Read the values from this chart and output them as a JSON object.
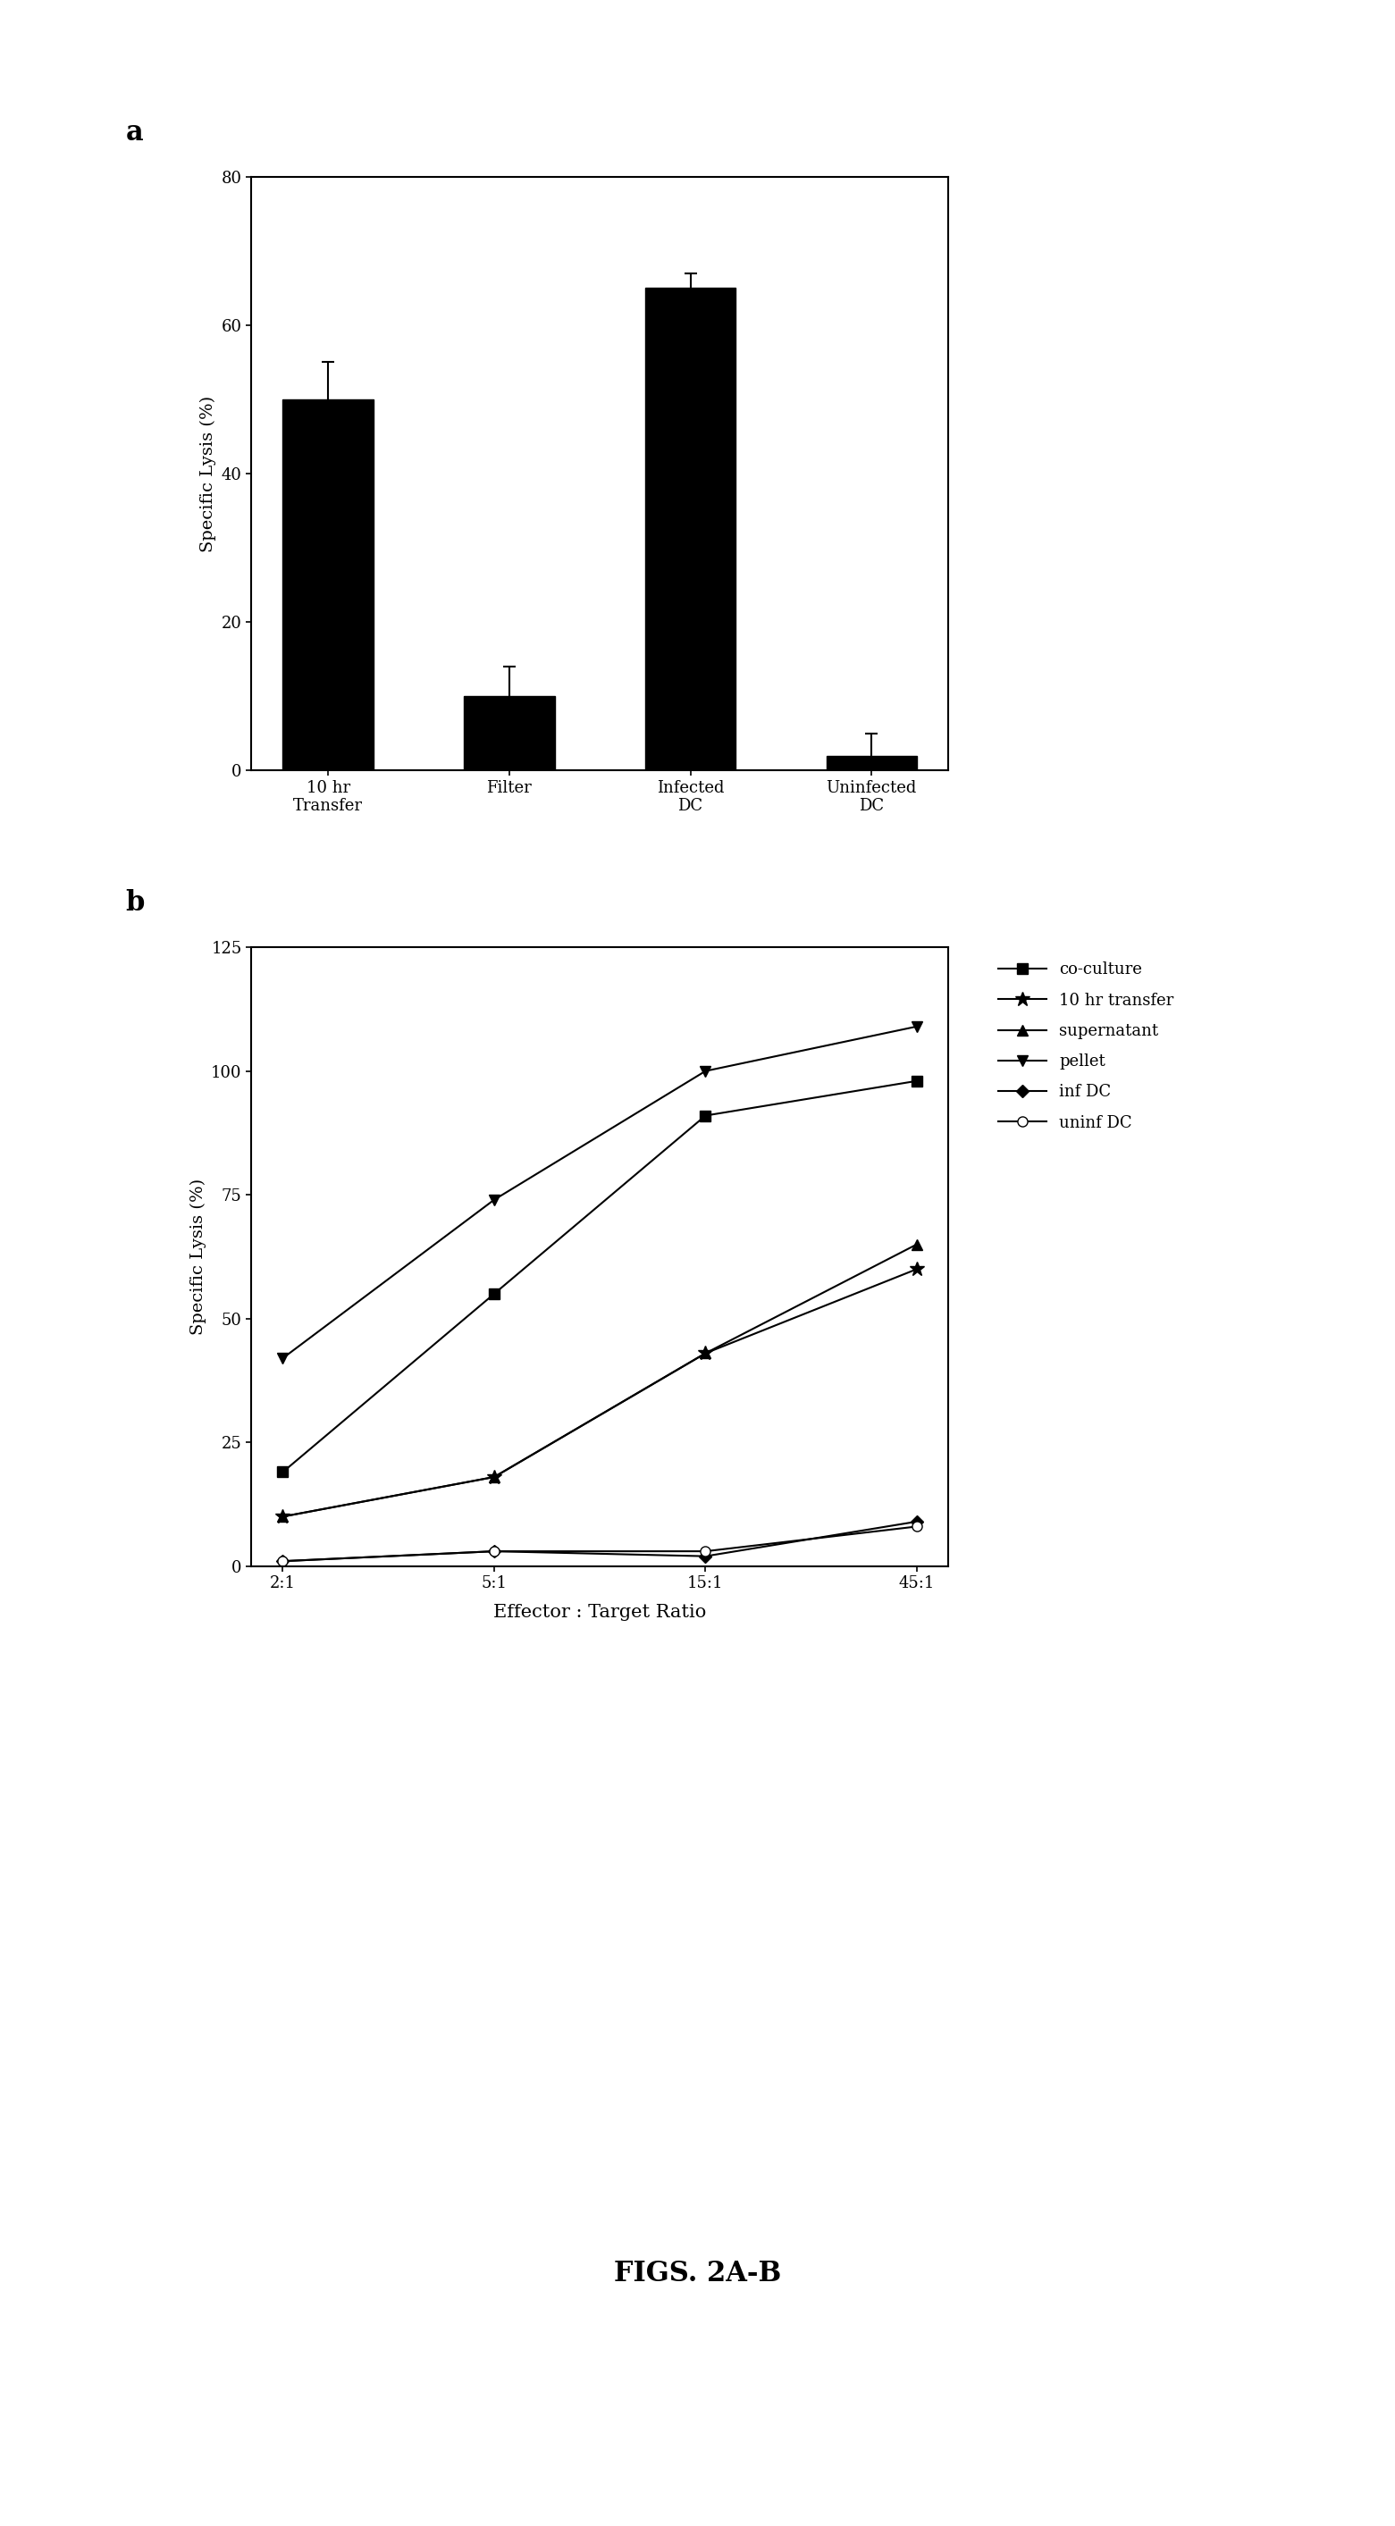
{
  "fig_width": 15.61,
  "fig_height": 28.27,
  "background_color": "#ffffff",
  "panel_a": {
    "label": "a",
    "categories": [
      "10 hr\nTransfer",
      "Filter",
      "Infected\nDC",
      "Uninfected\nDC"
    ],
    "values": [
      50,
      10,
      65,
      2
    ],
    "errors": [
      5,
      4,
      2,
      3
    ],
    "ylabel": "Specific Lysis (%)",
    "ylim": [
      0,
      80
    ],
    "yticks": [
      0,
      20,
      40,
      60,
      80
    ],
    "bar_color": "#000000",
    "bar_width": 0.5,
    "label_fontsize": 14,
    "tick_fontsize": 13
  },
  "panel_b": {
    "label": "b",
    "x_labels": [
      "2:1",
      "5:1",
      "15:1",
      "45:1"
    ],
    "x_values": [
      0,
      1,
      2,
      3
    ],
    "ylabel": "Specific Lysis (%)",
    "xlabel": "Effector : Target Ratio",
    "ylim": [
      0,
      125
    ],
    "yticks": [
      0,
      25,
      50,
      75,
      100,
      125
    ],
    "series": [
      {
        "name": "co-culture",
        "values": [
          19,
          55,
          91,
          98
        ],
        "color": "#000000",
        "marker": "s",
        "linestyle": "-",
        "markersize": 8,
        "fillstyle": "full"
      },
      {
        "name": "10 hr transfer",
        "values": [
          10,
          18,
          43,
          60
        ],
        "color": "#000000",
        "marker": "*",
        "linestyle": "-",
        "markersize": 12,
        "fillstyle": "full"
      },
      {
        "name": "supernatant",
        "values": [
          10,
          18,
          43,
          65
        ],
        "color": "#000000",
        "marker": "^",
        "linestyle": "-",
        "markersize": 8,
        "fillstyle": "full"
      },
      {
        "name": "pellet",
        "values": [
          42,
          74,
          100,
          109
        ],
        "color": "#000000",
        "marker": "v",
        "linestyle": "-",
        "markersize": 8,
        "fillstyle": "full"
      },
      {
        "name": "inf DC",
        "values": [
          1,
          3,
          2,
          9
        ],
        "color": "#000000",
        "marker": "D",
        "linestyle": "-",
        "markersize": 7,
        "fillstyle": "full"
      },
      {
        "name": "uninf DC",
        "values": [
          1,
          3,
          3,
          8
        ],
        "color": "#000000",
        "marker": "o",
        "linestyle": "-",
        "markersize": 8,
        "fillstyle": "none"
      }
    ],
    "label_fontsize": 14,
    "tick_fontsize": 13
  },
  "caption": "FIGS. 2A-B",
  "caption_fontsize": 22
}
